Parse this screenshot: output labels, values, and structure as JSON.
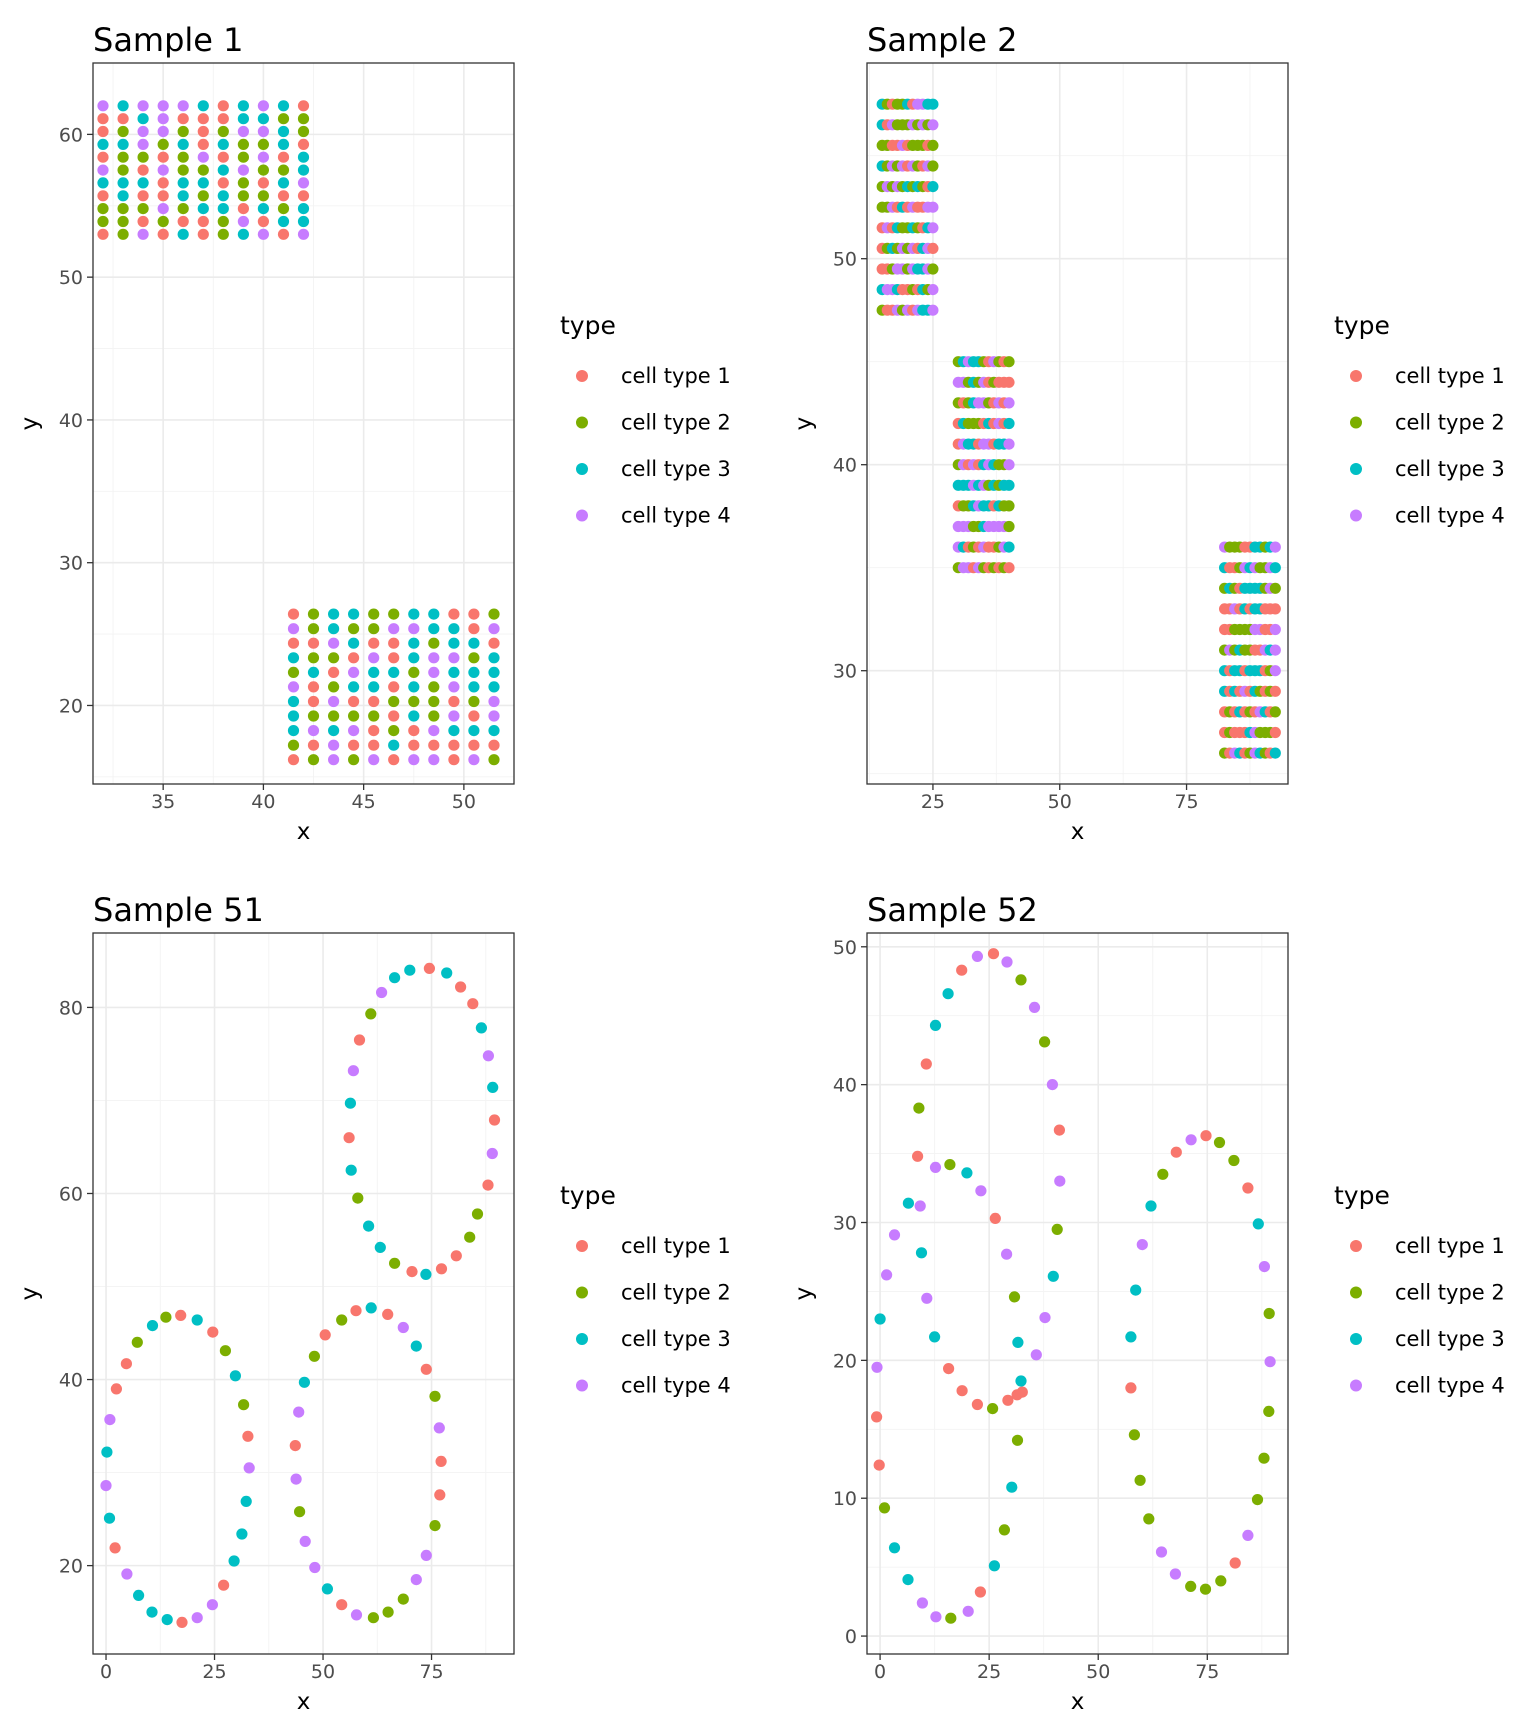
{
  "legend_title": "type",
  "categories": [
    "cell type 1",
    "cell type 2",
    "cell type 3",
    "cell type 4"
  ],
  "colors": [
    "#F8766D",
    "#7CAE00",
    "#00BFC4",
    "#C77CFF"
  ],
  "chart_data": [
    {
      "type": "scatter",
      "title": "Sample 1",
      "xlabel": "x",
      "ylabel": "y",
      "xlim": [
        31.5,
        52.5
      ],
      "ylim": [
        14.5,
        65
      ],
      "xticks": [
        35,
        40,
        45,
        50
      ],
      "yticks": [
        20,
        30,
        40,
        50,
        60
      ],
      "grid": true,
      "legend_position": "right",
      "clusters": [
        {
          "x_start": 32,
          "x_step": 1,
          "nx": 11,
          "y_start": 53,
          "y_step": 0.9,
          "ny": 11,
          "seed": 11
        },
        {
          "x_start": 41.5,
          "x_step": 1,
          "nx": 11,
          "y_start": 16.2,
          "y_step": 1.02,
          "ny": 11,
          "seed": 23
        }
      ]
    },
    {
      "type": "scatter",
      "title": "Sample 2",
      "xlabel": "x",
      "ylabel": "y",
      "xlim": [
        12,
        95
      ],
      "ylim": [
        24.5,
        59.5
      ],
      "xticks": [
        25,
        50,
        75
      ],
      "yticks": [
        30,
        40,
        50
      ],
      "grid": true,
      "legend_position": "right",
      "clusters": [
        {
          "x_start": 15,
          "x_step": 1,
          "nx": 11,
          "y_start": 47.5,
          "y_step": 1.0,
          "ny": 11,
          "seed": 37
        },
        {
          "x_start": 30,
          "x_step": 1,
          "nx": 11,
          "y_start": 35,
          "y_step": 1.0,
          "ny": 11,
          "seed": 41
        },
        {
          "x_start": 82.5,
          "x_step": 1,
          "nx": 11,
          "y_start": 26,
          "y_step": 1.0,
          "ny": 11,
          "seed": 53
        }
      ]
    },
    {
      "type": "scatter",
      "title": "Sample 51",
      "xlabel": "x",
      "ylabel": "y",
      "xlim": [
        -3,
        94
      ],
      "ylim": [
        10.5,
        88
      ],
      "xticks": [
        0,
        25,
        50,
        75
      ],
      "yticks": [
        20,
        40,
        60,
        80
      ],
      "grid": true,
      "legend_position": "right",
      "points": [
        [
          74.5,
          84.2,
          0
        ],
        [
          78.5,
          83.7,
          2
        ],
        [
          81.7,
          82.2,
          0
        ],
        [
          84.5,
          80.4,
          0
        ],
        [
          86.5,
          77.8,
          2
        ],
        [
          88.1,
          74.8,
          3
        ],
        [
          89.1,
          71.4,
          2
        ],
        [
          89.5,
          67.9,
          0
        ],
        [
          89.0,
          64.3,
          3
        ],
        [
          88.0,
          60.9,
          0
        ],
        [
          85.6,
          57.8,
          1
        ],
        [
          83.8,
          55.3,
          1
        ],
        [
          80.7,
          53.3,
          0
        ],
        [
          77.3,
          51.9,
          0
        ],
        [
          73.7,
          51.3,
          2
        ],
        [
          70.5,
          51.6,
          0
        ],
        [
          66.5,
          52.5,
          1
        ],
        [
          63.2,
          54.2,
          2
        ],
        [
          60.5,
          56.5,
          2
        ],
        [
          58.0,
          59.5,
          1
        ],
        [
          56.5,
          62.5,
          2
        ],
        [
          56.0,
          66.0,
          0
        ],
        [
          56.3,
          69.7,
          2
        ],
        [
          57.0,
          73.2,
          3
        ],
        [
          58.4,
          76.5,
          0
        ],
        [
          61.0,
          79.3,
          1
        ],
        [
          63.5,
          81.6,
          3
        ],
        [
          66.5,
          83.2,
          2
        ],
        [
          70.0,
          84.0,
          2
        ],
        [
          17.2,
          46.9,
          0
        ],
        [
          13.8,
          46.7,
          1
        ],
        [
          10.7,
          45.8,
          2
        ],
        [
          7.2,
          44.0,
          1
        ],
        [
          4.7,
          41.7,
          0
        ],
        [
          2.4,
          39.0,
          0
        ],
        [
          0.9,
          35.7,
          3
        ],
        [
          0.2,
          32.2,
          2
        ],
        [
          0.0,
          28.6,
          3
        ],
        [
          0.8,
          25.1,
          2
        ],
        [
          2.1,
          21.9,
          0
        ],
        [
          4.8,
          19.1,
          3
        ],
        [
          7.5,
          16.8,
          2
        ],
        [
          10.6,
          15.0,
          2
        ],
        [
          14.1,
          14.2,
          2
        ],
        [
          17.5,
          13.9,
          0
        ],
        [
          21.0,
          14.4,
          3
        ],
        [
          24.5,
          15.8,
          3
        ],
        [
          27.1,
          17.9,
          0
        ],
        [
          29.5,
          20.5,
          2
        ],
        [
          31.3,
          23.4,
          2
        ],
        [
          32.3,
          26.9,
          2
        ],
        [
          33.0,
          30.5,
          3
        ],
        [
          32.7,
          33.9,
          0
        ],
        [
          31.7,
          37.3,
          1
        ],
        [
          29.8,
          40.4,
          2
        ],
        [
          27.5,
          43.1,
          1
        ],
        [
          24.6,
          45.1,
          0
        ],
        [
          21.0,
          46.4,
          2
        ],
        [
          61.1,
          47.7,
          2
        ],
        [
          57.6,
          47.4,
          0
        ],
        [
          54.3,
          46.4,
          1
        ],
        [
          50.5,
          44.8,
          0
        ],
        [
          48.0,
          42.5,
          1
        ],
        [
          45.7,
          39.7,
          2
        ],
        [
          44.4,
          36.5,
          3
        ],
        [
          43.6,
          32.9,
          0
        ],
        [
          43.8,
          29.3,
          3
        ],
        [
          44.6,
          25.8,
          1
        ],
        [
          45.9,
          22.6,
          3
        ],
        [
          48.1,
          19.8,
          3
        ],
        [
          51.0,
          17.5,
          2
        ],
        [
          54.3,
          15.8,
          0
        ],
        [
          57.7,
          14.7,
          3
        ],
        [
          61.6,
          14.4,
          1
        ],
        [
          65.0,
          15.0,
          1
        ],
        [
          68.5,
          16.4,
          1
        ],
        [
          71.5,
          18.5,
          3
        ],
        [
          73.8,
          21.1,
          3
        ],
        [
          75.8,
          24.3,
          1
        ],
        [
          76.9,
          27.6,
          0
        ],
        [
          77.2,
          31.2,
          0
        ],
        [
          76.8,
          34.8,
          3
        ],
        [
          75.8,
          38.2,
          1
        ],
        [
          73.8,
          41.1,
          0
        ],
        [
          71.5,
          43.6,
          2
        ],
        [
          68.5,
          45.6,
          3
        ],
        [
          64.9,
          47.0,
          0
        ]
      ]
    },
    {
      "type": "scatter",
      "title": "Sample 52",
      "xlabel": "x",
      "ylabel": "y",
      "xlim": [
        -3,
        93.5
      ],
      "ylim": [
        -1.3,
        51
      ],
      "xticks": [
        0,
        25,
        50,
        75
      ],
      "yticks": [
        0,
        10,
        20,
        30,
        40,
        50
      ],
      "grid": true,
      "legend_position": "right",
      "points": [
        [
          26.0,
          49.5,
          0
        ],
        [
          22.3,
          49.3,
          3
        ],
        [
          18.7,
          48.3,
          0
        ],
        [
          15.6,
          46.6,
          2
        ],
        [
          12.7,
          44.3,
          2
        ],
        [
          10.6,
          41.5,
          0
        ],
        [
          8.9,
          38.3,
          1
        ],
        [
          8.6,
          34.8,
          0
        ],
        [
          9.2,
          31.2,
          3
        ],
        [
          9.5,
          27.8,
          2
        ],
        [
          10.7,
          24.5,
          3
        ],
        [
          12.5,
          21.7,
          2
        ],
        [
          15.7,
          19.4,
          0
        ],
        [
          18.8,
          17.8,
          0
        ],
        [
          22.3,
          16.8,
          0
        ],
        [
          25.8,
          16.5,
          1
        ],
        [
          29.3,
          17.1,
          0
        ],
        [
          32.6,
          17.7,
          0
        ],
        [
          32.3,
          18.5,
          2
        ],
        [
          35.8,
          20.4,
          3
        ],
        [
          37.8,
          23.1,
          3
        ],
        [
          39.7,
          26.1,
          2
        ],
        [
          40.6,
          29.5,
          1
        ],
        [
          41.2,
          33.0,
          3
        ],
        [
          41.1,
          36.7,
          0
        ],
        [
          39.5,
          40.0,
          3
        ],
        [
          37.7,
          43.1,
          1
        ],
        [
          35.4,
          45.6,
          3
        ],
        [
          32.3,
          47.6,
          1
        ],
        [
          29.1,
          48.9,
          3
        ],
        [
          16.0,
          34.2,
          1
        ],
        [
          12.7,
          34.0,
          3
        ],
        [
          6.5,
          31.4,
          2
        ],
        [
          3.3,
          29.1,
          3
        ],
        [
          1.5,
          26.2,
          3
        ],
        [
          0.0,
          23.0,
          2
        ],
        [
          -0.7,
          19.5,
          3
        ],
        [
          -0.8,
          15.9,
          0
        ],
        [
          -0.2,
          12.4,
          0
        ],
        [
          1.0,
          9.3,
          1
        ],
        [
          3.3,
          6.4,
          2
        ],
        [
          6.4,
          4.1,
          2
        ],
        [
          9.7,
          2.4,
          3
        ],
        [
          12.8,
          1.4,
          3
        ],
        [
          16.2,
          1.3,
          1
        ],
        [
          20.2,
          1.8,
          3
        ],
        [
          23.0,
          3.2,
          0
        ],
        [
          26.2,
          5.1,
          2
        ],
        [
          28.5,
          7.7,
          1
        ],
        [
          30.2,
          10.8,
          2
        ],
        [
          31.5,
          14.2,
          1
        ],
        [
          31.4,
          17.5,
          0
        ],
        [
          31.6,
          21.3,
          2
        ],
        [
          30.8,
          24.6,
          1
        ],
        [
          29.0,
          27.7,
          3
        ],
        [
          26.4,
          30.3,
          0
        ],
        [
          23.1,
          32.3,
          3
        ],
        [
          19.9,
          33.6,
          2
        ],
        [
          74.7,
          36.3,
          0
        ],
        [
          71.3,
          36.0,
          3
        ],
        [
          67.9,
          35.1,
          0
        ],
        [
          64.8,
          33.5,
          1
        ],
        [
          62.1,
          31.2,
          2
        ],
        [
          60.1,
          28.4,
          3
        ],
        [
          58.6,
          25.1,
          2
        ],
        [
          57.5,
          21.7,
          2
        ],
        [
          57.5,
          18.0,
          0
        ],
        [
          58.3,
          14.6,
          1
        ],
        [
          59.6,
          11.3,
          1
        ],
        [
          61.6,
          8.5,
          1
        ],
        [
          64.5,
          6.1,
          3
        ],
        [
          67.7,
          4.5,
          3
        ],
        [
          71.2,
          3.6,
          1
        ],
        [
          74.6,
          3.4,
          1
        ],
        [
          78.1,
          4.0,
          1
        ],
        [
          81.4,
          5.3,
          0
        ],
        [
          84.3,
          7.3,
          3
        ],
        [
          86.5,
          9.9,
          1
        ],
        [
          88.0,
          12.9,
          1
        ],
        [
          89.1,
          16.3,
          1
        ],
        [
          89.4,
          19.9,
          3
        ],
        [
          89.2,
          23.4,
          1
        ],
        [
          88.1,
          26.8,
          3
        ],
        [
          86.7,
          29.9,
          2
        ],
        [
          84.3,
          32.5,
          0
        ],
        [
          81.1,
          34.5,
          1
        ],
        [
          77.8,
          35.8,
          1
        ]
      ]
    }
  ]
}
